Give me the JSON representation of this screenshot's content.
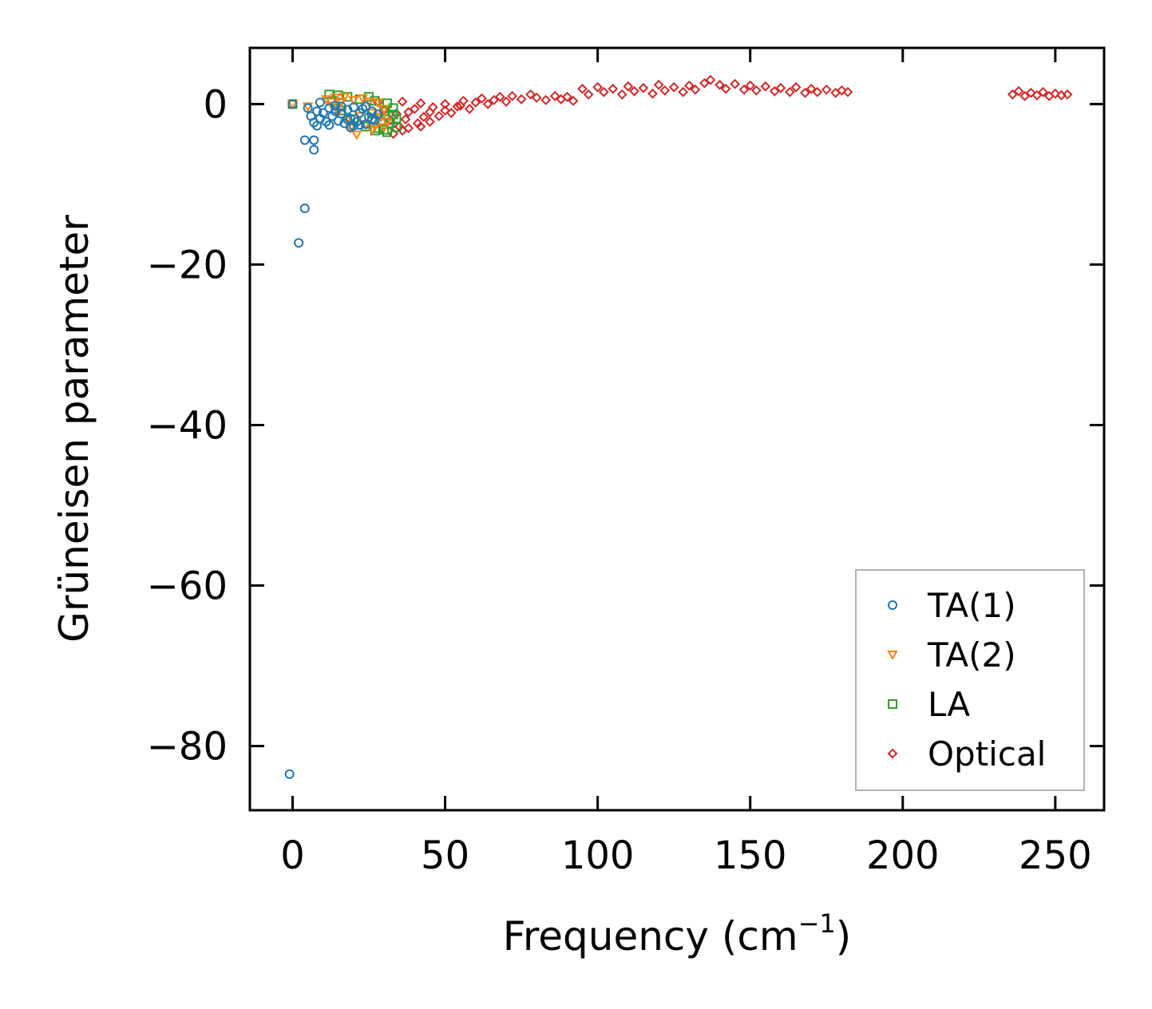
{
  "chart_data": {
    "type": "scatter",
    "title": "",
    "xlabel": "Frequency (cm",
    "xlabel_sup": "−1",
    "xlabel_suffix": ")",
    "ylabel": "Grüneisen parameter",
    "xlim": [
      -14,
      266
    ],
    "ylim": [
      -88,
      7
    ],
    "xticks": [
      0,
      50,
      100,
      150,
      200,
      250
    ],
    "xtick_labels": [
      "0",
      "50",
      "100",
      "150",
      "200",
      "250"
    ],
    "yticks": [
      0,
      -20,
      -40,
      -60,
      -80
    ],
    "ytick_labels": [
      "0",
      "−20",
      "−40",
      "−60",
      "−80"
    ],
    "legend_position": "lower-right",
    "series": [
      {
        "name": "TA(1)",
        "marker": "circle",
        "color": "#1f77b4",
        "points": [
          [
            -1,
            -83.5
          ],
          [
            2,
            -17.3
          ],
          [
            4,
            -13
          ],
          [
            4,
            -4.5
          ],
          [
            7,
            -4.5
          ],
          [
            7,
            -5.7
          ],
          [
            0,
            0
          ],
          [
            5,
            -0.5
          ],
          [
            6,
            -1.5
          ],
          [
            7,
            -2.3
          ],
          [
            8,
            -2.7
          ],
          [
            8,
            -0.9
          ],
          [
            9,
            -1.8
          ],
          [
            9,
            0.2
          ],
          [
            10,
            -1.1
          ],
          [
            11,
            -2.2
          ],
          [
            12,
            -0.5
          ],
          [
            12,
            -2.6
          ],
          [
            13,
            -1.5
          ],
          [
            14,
            -0.9
          ],
          [
            15,
            -2.1
          ],
          [
            16,
            -1.2
          ],
          [
            17,
            -2.4
          ],
          [
            18,
            -0.7
          ],
          [
            19,
            -1.8
          ],
          [
            20,
            -0.4
          ],
          [
            21,
            -2.2
          ],
          [
            22,
            -1.1
          ],
          [
            23,
            -0.6
          ],
          [
            24,
            -2.5
          ],
          [
            25,
            -1.6
          ],
          [
            26,
            -0.9
          ],
          [
            27,
            -2.0
          ],
          [
            28,
            -1.3
          ],
          [
            14,
            -0.2
          ],
          [
            18,
            -1.9
          ],
          [
            22,
            -2.6
          ],
          [
            24,
            -0.3
          ],
          [
            26,
            -1.9
          ],
          [
            20,
            -2.7
          ],
          [
            16,
            -0.3
          ],
          [
            19,
            -2.9
          ]
        ]
      },
      {
        "name": "TA(2)",
        "marker": "triangle-down",
        "color": "#ff7f0e",
        "points": [
          [
            0,
            0
          ],
          [
            5,
            -0.3
          ],
          [
            11,
            0.6
          ],
          [
            13,
            -0.2
          ],
          [
            14,
            0.8
          ],
          [
            15,
            -1.0
          ],
          [
            17,
            0.9
          ],
          [
            18,
            -2.0
          ],
          [
            20,
            0.5
          ],
          [
            21,
            -3.8
          ],
          [
            22,
            -1.5
          ],
          [
            23,
            0.7
          ],
          [
            24,
            -2.5
          ],
          [
            25,
            0.3
          ],
          [
            26,
            -1.1
          ],
          [
            27,
            -2.8
          ],
          [
            28,
            0.2
          ],
          [
            29,
            -1.6
          ],
          [
            30,
            -0.6
          ],
          [
            31,
            -2.2
          ],
          [
            19,
            -3.0
          ],
          [
            16,
            0.3
          ],
          [
            26,
            -3.2
          ],
          [
            30,
            -2.9
          ]
        ]
      },
      {
        "name": "LA",
        "marker": "square",
        "color": "#2ca02c",
        "points": [
          [
            0,
            0
          ],
          [
            12,
            1.2
          ],
          [
            13,
            0.4
          ],
          [
            15,
            1.1
          ],
          [
            16,
            -0.8
          ],
          [
            18,
            0.9
          ],
          [
            20,
            -1.9
          ],
          [
            22,
            0.6
          ],
          [
            24,
            -2.8
          ],
          [
            26,
            -1.2
          ],
          [
            27,
            0.4
          ],
          [
            28,
            -3.0
          ],
          [
            29,
            -2.2
          ],
          [
            30,
            -0.9
          ],
          [
            31,
            -3.5
          ],
          [
            32,
            -2.4
          ],
          [
            33,
            -1.3
          ],
          [
            34,
            -2.9
          ],
          [
            33,
            -0.5
          ],
          [
            30,
            -3.2
          ],
          [
            27,
            -3.3
          ],
          [
            25,
            0.9
          ],
          [
            31,
            0.1
          ],
          [
            34,
            -1.8
          ]
        ]
      },
      {
        "name": "Optical",
        "marker": "diamond",
        "color": "#d62728",
        "points": [
          [
            28,
            0.2
          ],
          [
            30,
            -0.8
          ],
          [
            32,
            -2.0
          ],
          [
            33,
            -3.7
          ],
          [
            34,
            -1.2
          ],
          [
            35,
            -2.8
          ],
          [
            36,
            0.3
          ],
          [
            37,
            -1.9
          ],
          [
            38,
            -3.0
          ],
          [
            40,
            -0.6
          ],
          [
            41,
            -2.4
          ],
          [
            42,
            0.1
          ],
          [
            43,
            -1.6
          ],
          [
            45,
            -2.2
          ],
          [
            46,
            -0.4
          ],
          [
            48,
            -1.5
          ],
          [
            50,
            0.0
          ],
          [
            52,
            -1.1
          ],
          [
            54,
            -0.3
          ],
          [
            56,
            0.4
          ],
          [
            58,
            -0.6
          ],
          [
            60,
            0.2
          ],
          [
            62,
            0.7
          ],
          [
            64,
            0.0
          ],
          [
            66,
            0.5
          ],
          [
            68,
            0.9
          ],
          [
            70,
            0.3
          ],
          [
            72,
            1.0
          ],
          [
            75,
            0.6
          ],
          [
            78,
            1.2
          ],
          [
            80,
            0.8
          ],
          [
            83,
            0.5
          ],
          [
            86,
            1.0
          ],
          [
            88,
            0.6
          ],
          [
            90,
            0.9
          ],
          [
            92,
            0.4
          ],
          [
            95,
            1.9
          ],
          [
            97,
            1.2
          ],
          [
            100,
            2.1
          ],
          [
            102,
            1.5
          ],
          [
            105,
            1.9
          ],
          [
            108,
            1.2
          ],
          [
            110,
            2.2
          ],
          [
            112,
            1.6
          ],
          [
            115,
            2.0
          ],
          [
            118,
            1.3
          ],
          [
            120,
            2.4
          ],
          [
            122,
            1.7
          ],
          [
            125,
            2.1
          ],
          [
            128,
            1.5
          ],
          [
            130,
            2.3
          ],
          [
            132,
            1.8
          ],
          [
            135,
            2.6
          ],
          [
            137,
            3.0
          ],
          [
            140,
            2.4
          ],
          [
            142,
            1.9
          ],
          [
            145,
            2.5
          ],
          [
            148,
            1.8
          ],
          [
            150,
            2.3
          ],
          [
            152,
            1.7
          ],
          [
            155,
            2.2
          ],
          [
            158,
            1.6
          ],
          [
            160,
            2.0
          ],
          [
            163,
            1.5
          ],
          [
            165,
            2.1
          ],
          [
            168,
            1.4
          ],
          [
            170,
            1.9
          ],
          [
            172,
            1.5
          ],
          [
            175,
            1.8
          ],
          [
            178,
            1.4
          ],
          [
            180,
            1.7
          ],
          [
            182,
            1.5
          ],
          [
            236,
            1.2
          ],
          [
            238,
            1.6
          ],
          [
            240,
            1.0
          ],
          [
            242,
            1.4
          ],
          [
            244,
            1.1
          ],
          [
            246,
            1.5
          ],
          [
            248,
            1.0
          ],
          [
            250,
            1.3
          ],
          [
            252,
            1.1
          ],
          [
            254,
            1.2
          ],
          [
            45,
            -1.0
          ],
          [
            50,
            -0.8
          ],
          [
            55,
            -0.2
          ],
          [
            38,
            -1.0
          ],
          [
            42,
            -2.8
          ],
          [
            36,
            -3.3
          ]
        ]
      }
    ]
  }
}
